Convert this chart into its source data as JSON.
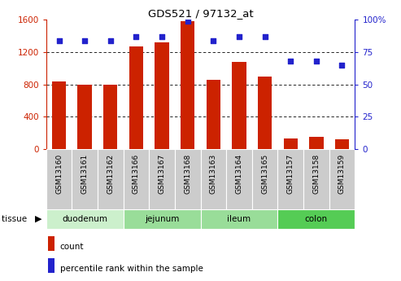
{
  "title": "GDS521 / 97132_at",
  "samples": [
    "GSM13160",
    "GSM13161",
    "GSM13162",
    "GSM13166",
    "GSM13167",
    "GSM13168",
    "GSM13163",
    "GSM13164",
    "GSM13165",
    "GSM13157",
    "GSM13158",
    "GSM13159"
  ],
  "counts": [
    840,
    800,
    800,
    1270,
    1320,
    1580,
    860,
    1080,
    900,
    130,
    145,
    120
  ],
  "percentiles": [
    84,
    84,
    84,
    87,
    87,
    99,
    84,
    87,
    87,
    68,
    68,
    65
  ],
  "tissues": [
    {
      "label": "duodenum",
      "start": 0,
      "end": 3,
      "color": "#ccf0cc"
    },
    {
      "label": "jejunum",
      "start": 3,
      "end": 6,
      "color": "#99dd99"
    },
    {
      "label": "ileum",
      "start": 6,
      "end": 9,
      "color": "#99dd99"
    },
    {
      "label": "colon",
      "start": 9,
      "end": 12,
      "color": "#55cc55"
    }
  ],
  "bar_color": "#cc2200",
  "dot_color": "#2222cc",
  "ylim_left": [
    0,
    1600
  ],
  "ylim_right": [
    0,
    100
  ],
  "yticks_left": [
    0,
    400,
    800,
    1200,
    1600
  ],
  "yticks_right": [
    0,
    25,
    50,
    75,
    100
  ],
  "sample_box_color": "#cccccc",
  "sample_box_edge": "#aaaaaa"
}
